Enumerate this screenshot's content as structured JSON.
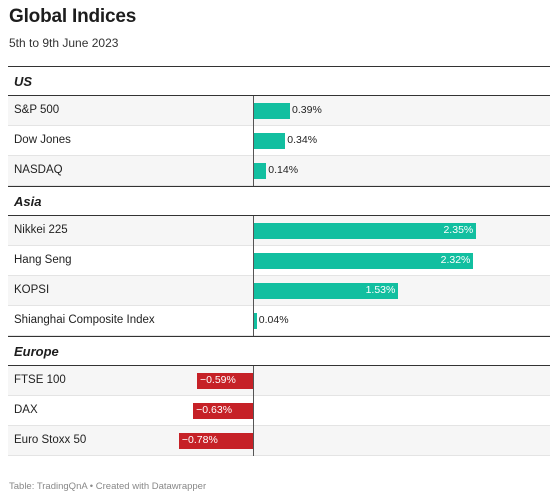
{
  "title": "Global Indices",
  "subtitle": "5th to 9th June 2023",
  "footer": "Table: TradingQnA • Created with Datawrapper",
  "colors": {
    "positive": "#12bfa0",
    "negative": "#c62127"
  },
  "chart_data": {
    "type": "bar",
    "orientation": "horizontal",
    "title": "Global Indices",
    "subtitle": "5th to 9th June 2023",
    "unit": "%",
    "groups": [
      {
        "name": "US",
        "rows": [
          {
            "label": "S&P 500",
            "value": 0.39,
            "display": "0.39%"
          },
          {
            "label": "Dow Jones",
            "value": 0.34,
            "display": "0.34%"
          },
          {
            "label": "NASDAQ",
            "value": 0.14,
            "display": "0.14%"
          }
        ]
      },
      {
        "name": "Asia",
        "rows": [
          {
            "label": "Nikkei 225",
            "value": 2.35,
            "display": "2.35%"
          },
          {
            "label": "Hang Seng",
            "value": 2.32,
            "display": "2.32%"
          },
          {
            "label": "KOPSI",
            "value": 1.53,
            "display": "1.53%"
          },
          {
            "label": "Shianghai Composite Index",
            "value": 0.04,
            "display": "0.04%"
          }
        ]
      },
      {
        "name": "Europe",
        "rows": [
          {
            "label": "FTSE 100",
            "value": -0.59,
            "display": "−0.59%"
          },
          {
            "label": "DAX",
            "value": -0.63,
            "display": "−0.63%"
          },
          {
            "label": "Euro Stoxx 50",
            "value": -0.78,
            "display": "−0.78%"
          }
        ]
      }
    ]
  }
}
